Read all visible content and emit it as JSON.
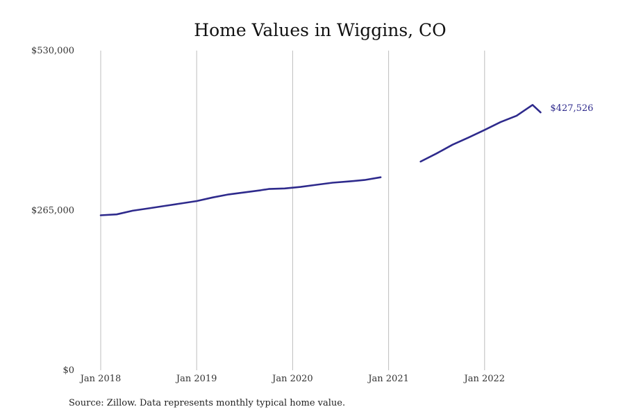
{
  "chart_data": {
    "type": "line",
    "title": "Home Values in Wiggins, CO",
    "source": "Source: Zillow. Data represents monthly typical home value.",
    "y_ticks": [
      {
        "value": 0,
        "label": "$0"
      },
      {
        "value": 265000,
        "label": "$265,000"
      },
      {
        "value": 530000,
        "label": "$530,000"
      }
    ],
    "x_ticks": [
      {
        "value": "2018-01",
        "label": "Jan 2018"
      },
      {
        "value": "2019-01",
        "label": "Jan 2019"
      },
      {
        "value": "2020-01",
        "label": "Jan 2020"
      },
      {
        "value": "2021-01",
        "label": "Jan 2021"
      },
      {
        "value": "2022-01",
        "label": "Jan 2022"
      }
    ],
    "xlim": [
      "2018-01",
      "2023-01"
    ],
    "ylim": [
      0,
      530000
    ],
    "grid": "vertical",
    "end_label": "$427,526",
    "colors": {
      "line": "#2e2a8c",
      "grid": "#bdbdbd"
    },
    "series": [
      {
        "segments": [
          {
            "x": [
              "2018-01",
              "2018-03",
              "2018-05",
              "2018-07",
              "2018-09",
              "2018-11",
              "2019-01",
              "2019-03",
              "2019-05",
              "2019-07",
              "2019-09",
              "2019-10",
              "2019-12",
              "2020-02",
              "2020-04",
              "2020-06",
              "2020-08",
              "2020-10",
              "2020-12"
            ],
            "y": [
              257000,
              258500,
              264500,
              268500,
              272500,
              276500,
              280500,
              286500,
              291500,
              295000,
              298500,
              300500,
              301500,
              304000,
              307500,
              311000,
              313000,
              315500,
              320000
            ]
          },
          {
            "x": [
              "2021-05",
              "2021-07",
              "2021-09",
              "2021-11",
              "2022-01",
              "2022-03",
              "2022-05",
              "2022-07",
              "2022-08"
            ],
            "y": [
              346000,
              359500,
              374000,
              386000,
              398500,
              411500,
              422000,
              440000,
              427526
            ]
          }
        ]
      }
    ]
  }
}
